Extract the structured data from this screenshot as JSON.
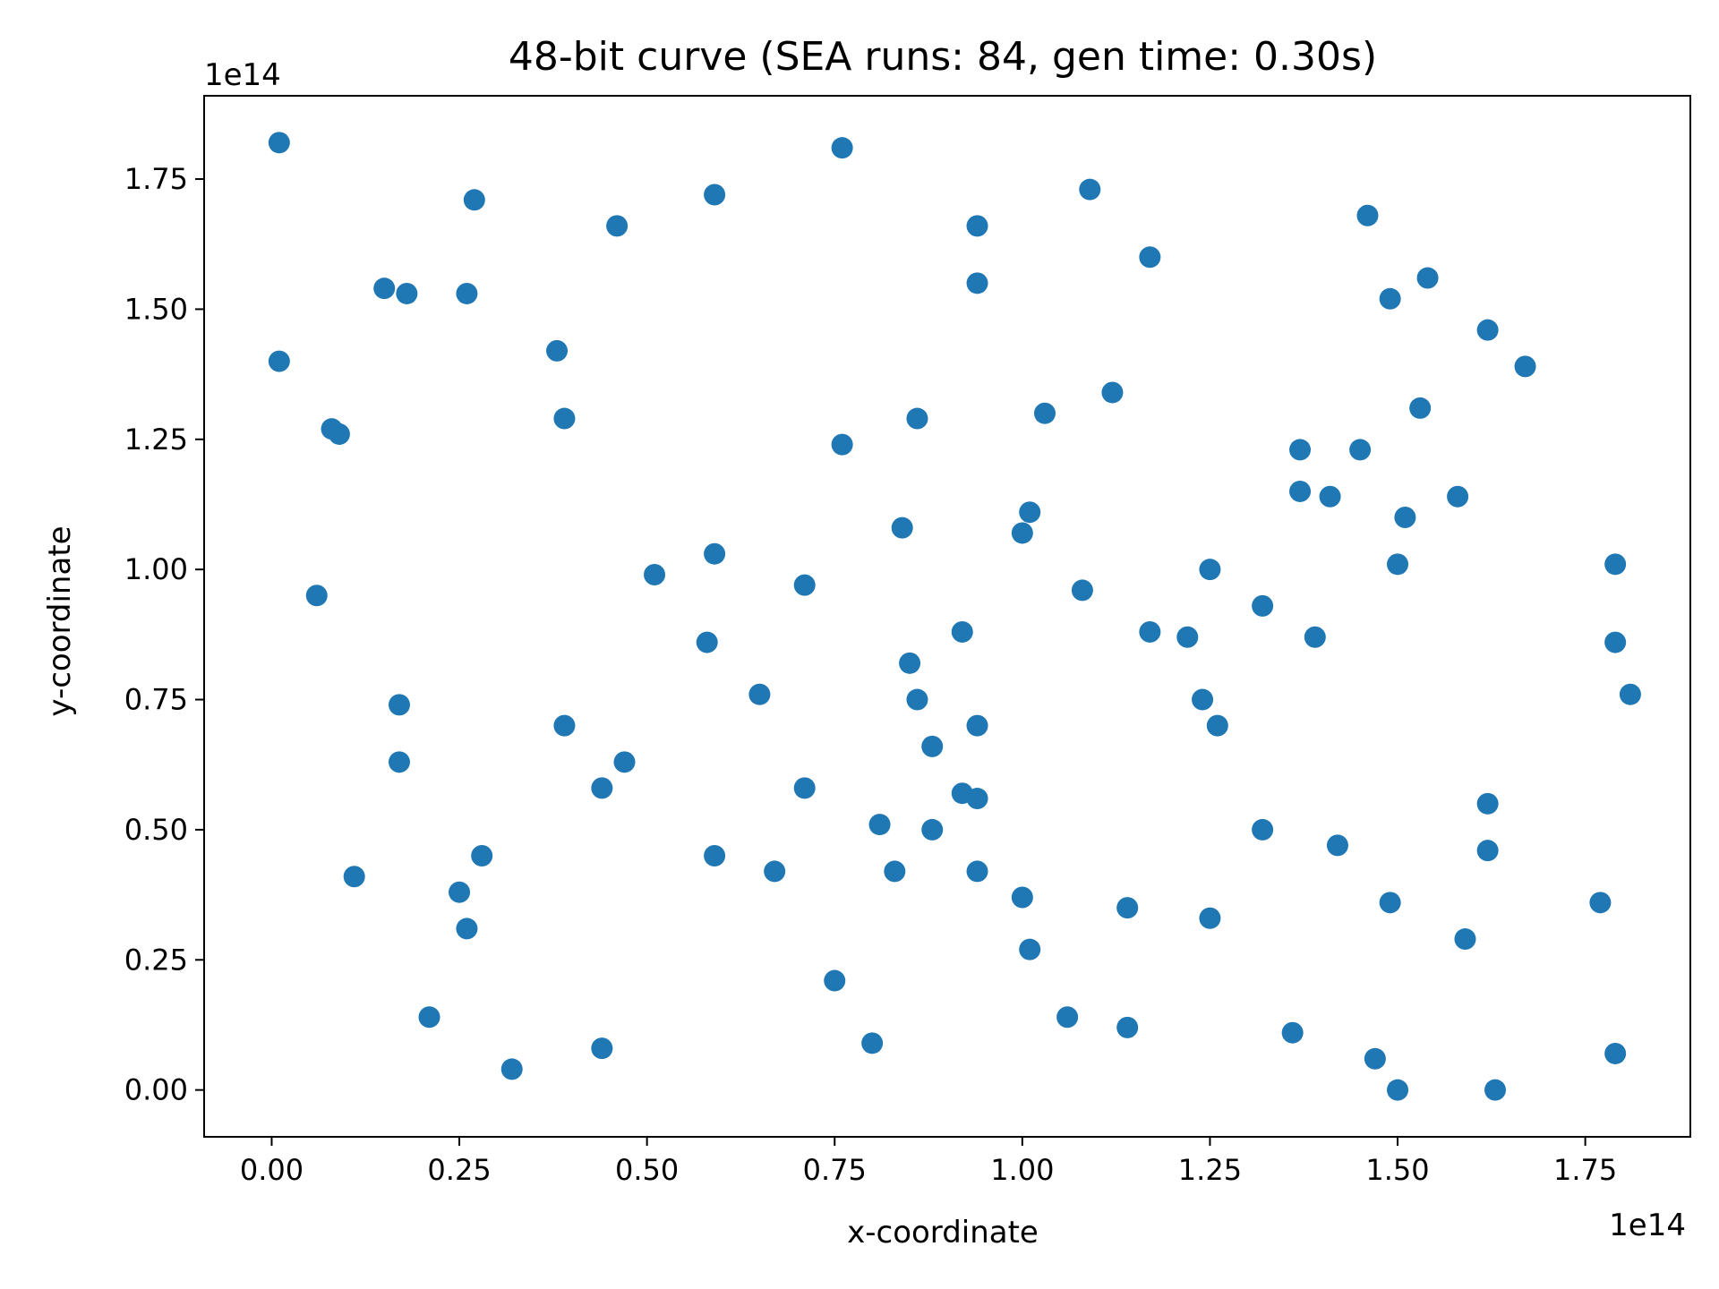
{
  "chart_data": {
    "type": "scatter",
    "title": "48-bit curve  (SEA runs: 84,  gen time: 0.30s)",
    "xlabel": "x-coordinate",
    "ylabel": "y-coordinate",
    "x_offset_label": "1e14",
    "y_offset_label": "1e14",
    "xlim": [
      -0.09,
      1.89
    ],
    "ylim": [
      -0.09,
      1.91
    ],
    "xticks": [
      0.0,
      0.25,
      0.5,
      0.75,
      1.0,
      1.25,
      1.5,
      1.75
    ],
    "xtick_labels": [
      "0.00",
      "0.25",
      "0.50",
      "0.75",
      "1.00",
      "1.25",
      "1.50",
      "1.75"
    ],
    "yticks": [
      0.0,
      0.25,
      0.5,
      0.75,
      1.0,
      1.25,
      1.5,
      1.75
    ],
    "ytick_labels": [
      "0.00",
      "0.25",
      "0.50",
      "0.75",
      "1.00",
      "1.25",
      "1.50",
      "1.75"
    ],
    "grid": false,
    "marker_color": "#1f77b4",
    "points": [
      [
        0.01,
        1.82
      ],
      [
        0.01,
        1.4
      ],
      [
        0.08,
        1.27
      ],
      [
        0.09,
        1.26
      ],
      [
        0.06,
        0.95
      ],
      [
        0.11,
        0.41
      ],
      [
        0.15,
        1.54
      ],
      [
        0.18,
        1.53
      ],
      [
        0.17,
        0.74
      ],
      [
        0.17,
        0.63
      ],
      [
        0.21,
        0.14
      ],
      [
        0.25,
        0.38
      ],
      [
        0.26,
        0.31
      ],
      [
        0.26,
        1.53
      ],
      [
        0.27,
        1.71
      ],
      [
        0.28,
        0.45
      ],
      [
        0.32,
        0.04
      ],
      [
        0.38,
        1.42
      ],
      [
        0.39,
        1.29
      ],
      [
        0.39,
        0.7
      ],
      [
        0.44,
        0.58
      ],
      [
        0.44,
        0.08
      ],
      [
        0.46,
        1.66
      ],
      [
        0.47,
        0.63
      ],
      [
        0.51,
        0.99
      ],
      [
        0.58,
        0.86
      ],
      [
        0.59,
        1.72
      ],
      [
        0.59,
        1.03
      ],
      [
        0.59,
        0.45
      ],
      [
        0.65,
        0.76
      ],
      [
        0.67,
        0.42
      ],
      [
        0.71,
        0.97
      ],
      [
        0.71,
        0.58
      ],
      [
        0.75,
        0.21
      ],
      [
        0.76,
        1.81
      ],
      [
        0.76,
        1.24
      ],
      [
        0.8,
        0.09
      ],
      [
        0.81,
        0.51
      ],
      [
        0.83,
        0.42
      ],
      [
        0.84,
        1.08
      ],
      [
        0.85,
        0.82
      ],
      [
        0.86,
        0.75
      ],
      [
        0.86,
        1.29
      ],
      [
        0.88,
        0.5
      ],
      [
        0.88,
        0.66
      ],
      [
        0.92,
        0.88
      ],
      [
        0.92,
        0.57
      ],
      [
        0.94,
        1.66
      ],
      [
        0.94,
        1.55
      ],
      [
        0.94,
        0.7
      ],
      [
        0.94,
        0.56
      ],
      [
        0.94,
        0.42
      ],
      [
        1.0,
        1.07
      ],
      [
        1.0,
        0.37
      ],
      [
        1.01,
        1.11
      ],
      [
        1.01,
        0.27
      ],
      [
        1.03,
        1.3
      ],
      [
        1.06,
        0.14
      ],
      [
        1.08,
        0.96
      ],
      [
        1.09,
        1.73
      ],
      [
        1.12,
        1.34
      ],
      [
        1.14,
        0.35
      ],
      [
        1.14,
        0.12
      ],
      [
        1.17,
        1.6
      ],
      [
        1.17,
        0.88
      ],
      [
        1.22,
        0.87
      ],
      [
        1.24,
        0.75
      ],
      [
        1.25,
        0.33
      ],
      [
        1.25,
        1.0
      ],
      [
        1.26,
        0.7
      ],
      [
        1.32,
        0.5
      ],
      [
        1.32,
        0.93
      ],
      [
        1.36,
        0.11
      ],
      [
        1.37,
        1.23
      ],
      [
        1.37,
        1.15
      ],
      [
        1.39,
        0.87
      ],
      [
        1.41,
        1.14
      ],
      [
        1.42,
        0.47
      ],
      [
        1.45,
        1.23
      ],
      [
        1.46,
        1.68
      ],
      [
        1.47,
        0.06
      ],
      [
        1.49,
        0.36
      ],
      [
        1.49,
        1.52
      ],
      [
        1.5,
        1.01
      ],
      [
        1.5,
        0.0
      ],
      [
        1.51,
        1.1
      ],
      [
        1.53,
        1.31
      ],
      [
        1.54,
        1.56
      ],
      [
        1.58,
        1.14
      ],
      [
        1.59,
        0.29
      ],
      [
        1.62,
        1.46
      ],
      [
        1.62,
        0.55
      ],
      [
        1.62,
        0.46
      ],
      [
        1.63,
        0.0
      ],
      [
        1.67,
        1.39
      ],
      [
        1.77,
        0.36
      ],
      [
        1.79,
        1.01
      ],
      [
        1.79,
        0.86
      ],
      [
        1.79,
        0.07
      ],
      [
        1.81,
        0.76
      ]
    ]
  }
}
